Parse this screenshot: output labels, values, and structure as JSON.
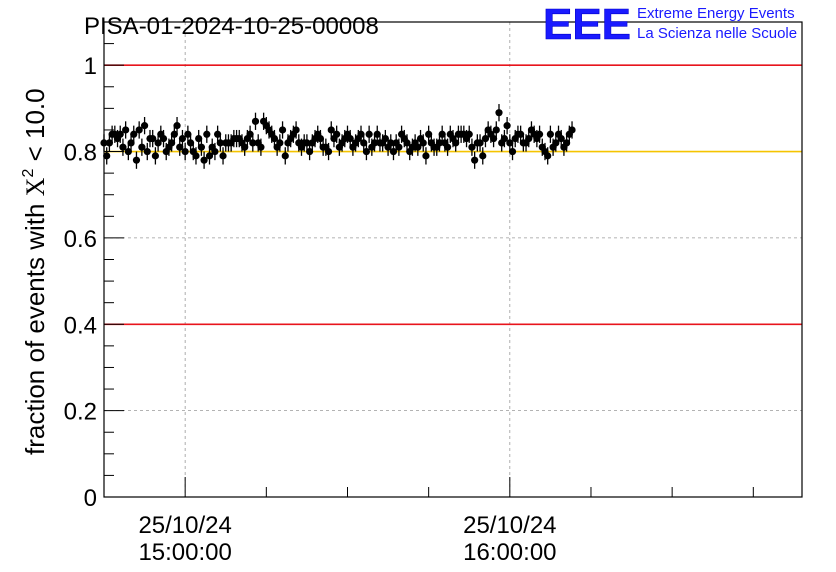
{
  "chart_data": {
    "type": "scatter",
    "title": "PISA-01-2024-10-25-00008",
    "logo": {
      "text": "EEE",
      "line1": "Extreme Energy Events",
      "line2": "La Scienza nelle Scuole"
    },
    "ylabel_main": "fraction of events with ",
    "ylabel_chi": "X",
    "ylabel_sup": "2",
    "ylabel_tail": " < 10.0",
    "xlabel": "",
    "ylim": [
      0,
      1.1
    ],
    "xlim": [
      "2024-10-25 14:45:00",
      "2024-10-25 16:54:00"
    ],
    "grid": true,
    "legend": "none",
    "y_ticks": [
      0,
      0.2,
      0.4,
      0.6,
      0.8,
      1
    ],
    "y_tick_labels": [
      "0",
      "0.2",
      "0.4",
      "0.6",
      "0.8",
      "1"
    ],
    "x_major_ticks": [
      "2024-10-25 15:00:00",
      "2024-10-25 16:00:00"
    ],
    "x_tick_labels": [
      {
        "date": "25/10/24",
        "time": "15:00:00"
      },
      {
        "date": "25/10/24",
        "time": "16:00:00"
      }
    ],
    "reference_lines": [
      {
        "y": 1.0,
        "color": "#e8141c"
      },
      {
        "y": 0.4,
        "color": "#e8141c"
      },
      {
        "y": 0.8,
        "color": "#f5c400"
      }
    ],
    "series": [
      {
        "color": "#000000",
        "marker": "circle",
        "error_bar": 0.02,
        "x_start": "2024-10-25 14:45:00",
        "x_step_seconds": 30,
        "values": [
          0.82,
          0.79,
          0.82,
          0.84,
          0.84,
          0.83,
          0.84,
          0.81,
          0.85,
          0.8,
          0.82,
          0.84,
          0.78,
          0.85,
          0.81,
          0.86,
          0.8,
          0.83,
          0.83,
          0.79,
          0.82,
          0.84,
          0.83,
          0.8,
          0.81,
          0.82,
          0.84,
          0.86,
          0.81,
          0.83,
          0.8,
          0.84,
          0.82,
          0.8,
          0.79,
          0.83,
          0.81,
          0.78,
          0.84,
          0.79,
          0.81,
          0.8,
          0.84,
          0.82,
          0.79,
          0.82,
          0.82,
          0.82,
          0.83,
          0.83,
          0.83,
          0.82,
          0.81,
          0.83,
          0.84,
          0.82,
          0.87,
          0.82,
          0.81,
          0.87,
          0.86,
          0.85,
          0.84,
          0.83,
          0.81,
          0.82,
          0.85,
          0.79,
          0.82,
          0.83,
          0.84,
          0.85,
          0.82,
          0.81,
          0.82,
          0.82,
          0.8,
          0.82,
          0.83,
          0.84,
          0.83,
          0.81,
          0.81,
          0.8,
          0.85,
          0.83,
          0.84,
          0.81,
          0.82,
          0.83,
          0.84,
          0.83,
          0.81,
          0.82,
          0.83,
          0.84,
          0.82,
          0.8,
          0.84,
          0.81,
          0.82,
          0.84,
          0.82,
          0.82,
          0.83,
          0.81,
          0.82,
          0.8,
          0.82,
          0.81,
          0.84,
          0.83,
          0.82,
          0.8,
          0.81,
          0.82,
          0.81,
          0.83,
          0.82,
          0.79,
          0.84,
          0.82,
          0.81,
          0.81,
          0.82,
          0.84,
          0.82,
          0.81,
          0.84,
          0.83,
          0.82,
          0.84,
          0.84,
          0.84,
          0.83,
          0.84,
          0.81,
          0.78,
          0.82,
          0.82,
          0.79,
          0.83,
          0.85,
          0.84,
          0.83,
          0.85,
          0.89,
          0.82,
          0.83,
          0.86,
          0.82,
          0.8,
          0.83,
          0.84,
          0.84,
          0.82,
          0.82,
          0.83,
          0.85,
          0.84,
          0.83,
          0.84,
          0.81,
          0.8,
          0.79,
          0.84,
          0.81,
          0.82,
          0.84,
          0.83,
          0.81,
          0.82,
          0.84,
          0.85
        ]
      }
    ]
  }
}
